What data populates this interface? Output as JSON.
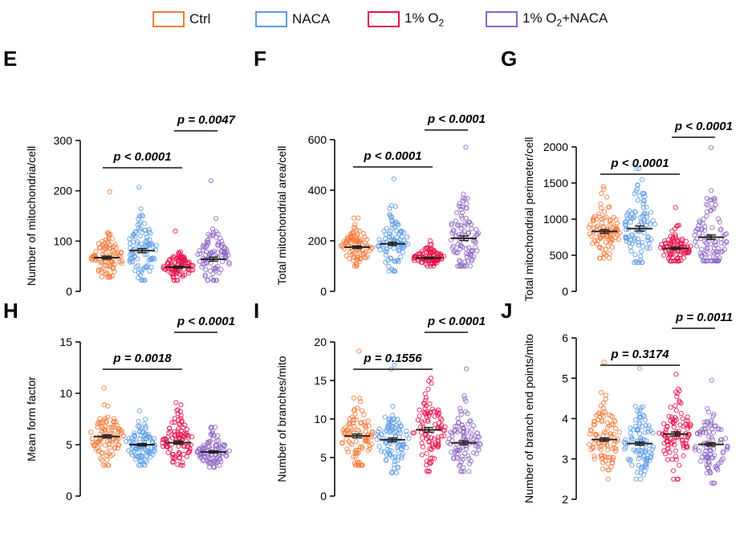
{
  "legend": {
    "items": [
      {
        "label": "Ctrl",
        "color": "#f47a3a"
      },
      {
        "label": "NACA",
        "color": "#5b9be6"
      },
      {
        "label": "1% O2",
        "color": "#e8124a",
        "label_html_sub": "2",
        "label_base": "1% O"
      },
      {
        "label": "1% O2+NACA",
        "color": "#8e66c4",
        "label_base": "1% O",
        "label_sub": "2",
        "label_tail": "+NACA"
      }
    ]
  },
  "chart_data": [
    {
      "panel": "E",
      "type": "scatter",
      "ylabel": "Number of mitochondria/cell",
      "ylim": [
        0,
        300
      ],
      "yticks": [
        0,
        100,
        200,
        300
      ],
      "groups": [
        "Ctrl",
        "NACA",
        "1% O2",
        "1% O2+NACA"
      ],
      "means": [
        67,
        81,
        48,
        64
      ],
      "sem": [
        3,
        4,
        2,
        4
      ],
      "ranges": [
        [
          28,
          198
        ],
        [
          22,
          207
        ],
        [
          22,
          120
        ],
        [
          22,
          220
        ]
      ],
      "spread": [
        22,
        30,
        13,
        28
      ],
      "comparisons": [
        {
          "text": "p < 0.0001",
          "from": 0,
          "to": 2,
          "level": 1
        },
        {
          "text": "p = 0.0047",
          "from": 2,
          "to": 3,
          "level": 2
        }
      ]
    },
    {
      "panel": "F",
      "type": "scatter",
      "ylabel": "Total mitochondrial area/cell",
      "ylim": [
        0,
        600
      ],
      "yticks": [
        0,
        200,
        400,
        600
      ],
      "groups": [
        "Ctrl",
        "NACA",
        "1% O2",
        "1% O2+NACA"
      ],
      "means": [
        175,
        188,
        132,
        210
      ],
      "sem": [
        5,
        6,
        3,
        9
      ],
      "ranges": [
        [
          100,
          290
        ],
        [
          80,
          445
        ],
        [
          100,
          200
        ],
        [
          100,
          570
        ]
      ],
      "spread": [
        35,
        50,
        18,
        70
      ],
      "comparisons": [
        {
          "text": "p < 0.0001",
          "from": 0,
          "to": 2,
          "level": 1
        },
        {
          "text": "p < 0.0001",
          "from": 2,
          "to": 3,
          "level": 2
        }
      ]
    },
    {
      "panel": "G",
      "type": "scatter",
      "ylabel": "Total mitochondrial perimeter/cell",
      "ylim": [
        0,
        2000
      ],
      "yticks": [
        0,
        500,
        1000,
        1500,
        2000
      ],
      "groups": [
        "Ctrl",
        "NACA",
        "1% O2",
        "1% O2+NACA"
      ],
      "means": [
        830,
        870,
        595,
        750
      ],
      "sem": [
        25,
        35,
        15,
        30
      ],
      "ranges": [
        [
          460,
          1450
        ],
        [
          400,
          1700
        ],
        [
          420,
          1160
        ],
        [
          420,
          1990
        ]
      ],
      "spread": [
        200,
        270,
        110,
        260
      ],
      "comparisons": [
        {
          "text": "p < 0.0001",
          "from": 0,
          "to": 2,
          "level": 1
        },
        {
          "text": "p < 0.0001",
          "from": 2,
          "to": 3,
          "level": 2
        }
      ]
    },
    {
      "panel": "H",
      "type": "scatter",
      "ylabel": "Mean form factor",
      "ylim": [
        0,
        15
      ],
      "yticks": [
        0,
        5,
        10,
        15
      ],
      "groups": [
        "Ctrl",
        "NACA",
        "1% O2",
        "1% O2+NACA"
      ],
      "means": [
        5.8,
        5.0,
        5.2,
        4.3
      ],
      "sem": [
        0.15,
        0.12,
        0.15,
        0.1
      ],
      "ranges": [
        [
          3.0,
          10.5
        ],
        [
          3.0,
          8.3
        ],
        [
          3.0,
          9.1
        ],
        [
          2.8,
          6.7
        ]
      ],
      "spread": [
        1.3,
        1.0,
        1.2,
        0.8
      ],
      "comparisons": [
        {
          "text": "p = 0.0018",
          "from": 0,
          "to": 2,
          "level": 1
        },
        {
          "text": "p < 0.0001",
          "from": 2,
          "to": 3,
          "level": 2
        }
      ]
    },
    {
      "panel": "I",
      "type": "scatter",
      "ylabel": "Number of branches/mito",
      "ylim": [
        0,
        20
      ],
      "yticks": [
        0,
        5,
        10,
        15,
        20
      ],
      "groups": [
        "Ctrl",
        "NACA",
        "1% O2",
        "1% O2+NACA"
      ],
      "means": [
        7.8,
        7.3,
        8.6,
        6.9
      ],
      "sem": [
        0.25,
        0.25,
        0.3,
        0.25
      ],
      "ranges": [
        [
          4.0,
          18.8
        ],
        [
          3.0,
          17.0
        ],
        [
          3.2,
          15.3
        ],
        [
          3.2,
          16.5
        ]
      ],
      "spread": [
        2.2,
        2.1,
        2.4,
        2.0
      ],
      "comparisons": [
        {
          "text": "p = 0.1556",
          "from": 0,
          "to": 2,
          "level": 1
        },
        {
          "text": "p < 0.0001",
          "from": 2,
          "to": 3,
          "level": 2
        }
      ]
    },
    {
      "panel": "J",
      "type": "scatter",
      "ylabel": "Number of branch end points/mito",
      "ylim": [
        2,
        6
      ],
      "yticks": [
        2,
        3,
        4,
        5,
        6
      ],
      "groups": [
        "Ctrl",
        "NACA",
        "1% O2",
        "1% O2+NACA"
      ],
      "means": [
        3.48,
        3.38,
        3.62,
        3.36
      ],
      "sem": [
        0.04,
        0.04,
        0.05,
        0.04
      ],
      "ranges": [
        [
          2.5,
          5.4
        ],
        [
          2.5,
          5.25
        ],
        [
          2.5,
          5.1
        ],
        [
          2.4,
          4.95
        ]
      ],
      "spread": [
        0.45,
        0.45,
        0.48,
        0.42
      ],
      "comparisons": [
        {
          "text": "p = 0.3174",
          "from": 0,
          "to": 2,
          "level": 1
        },
        {
          "text": "p = 0.0011",
          "from": 2,
          "to": 3,
          "level": 2
        }
      ]
    }
  ]
}
